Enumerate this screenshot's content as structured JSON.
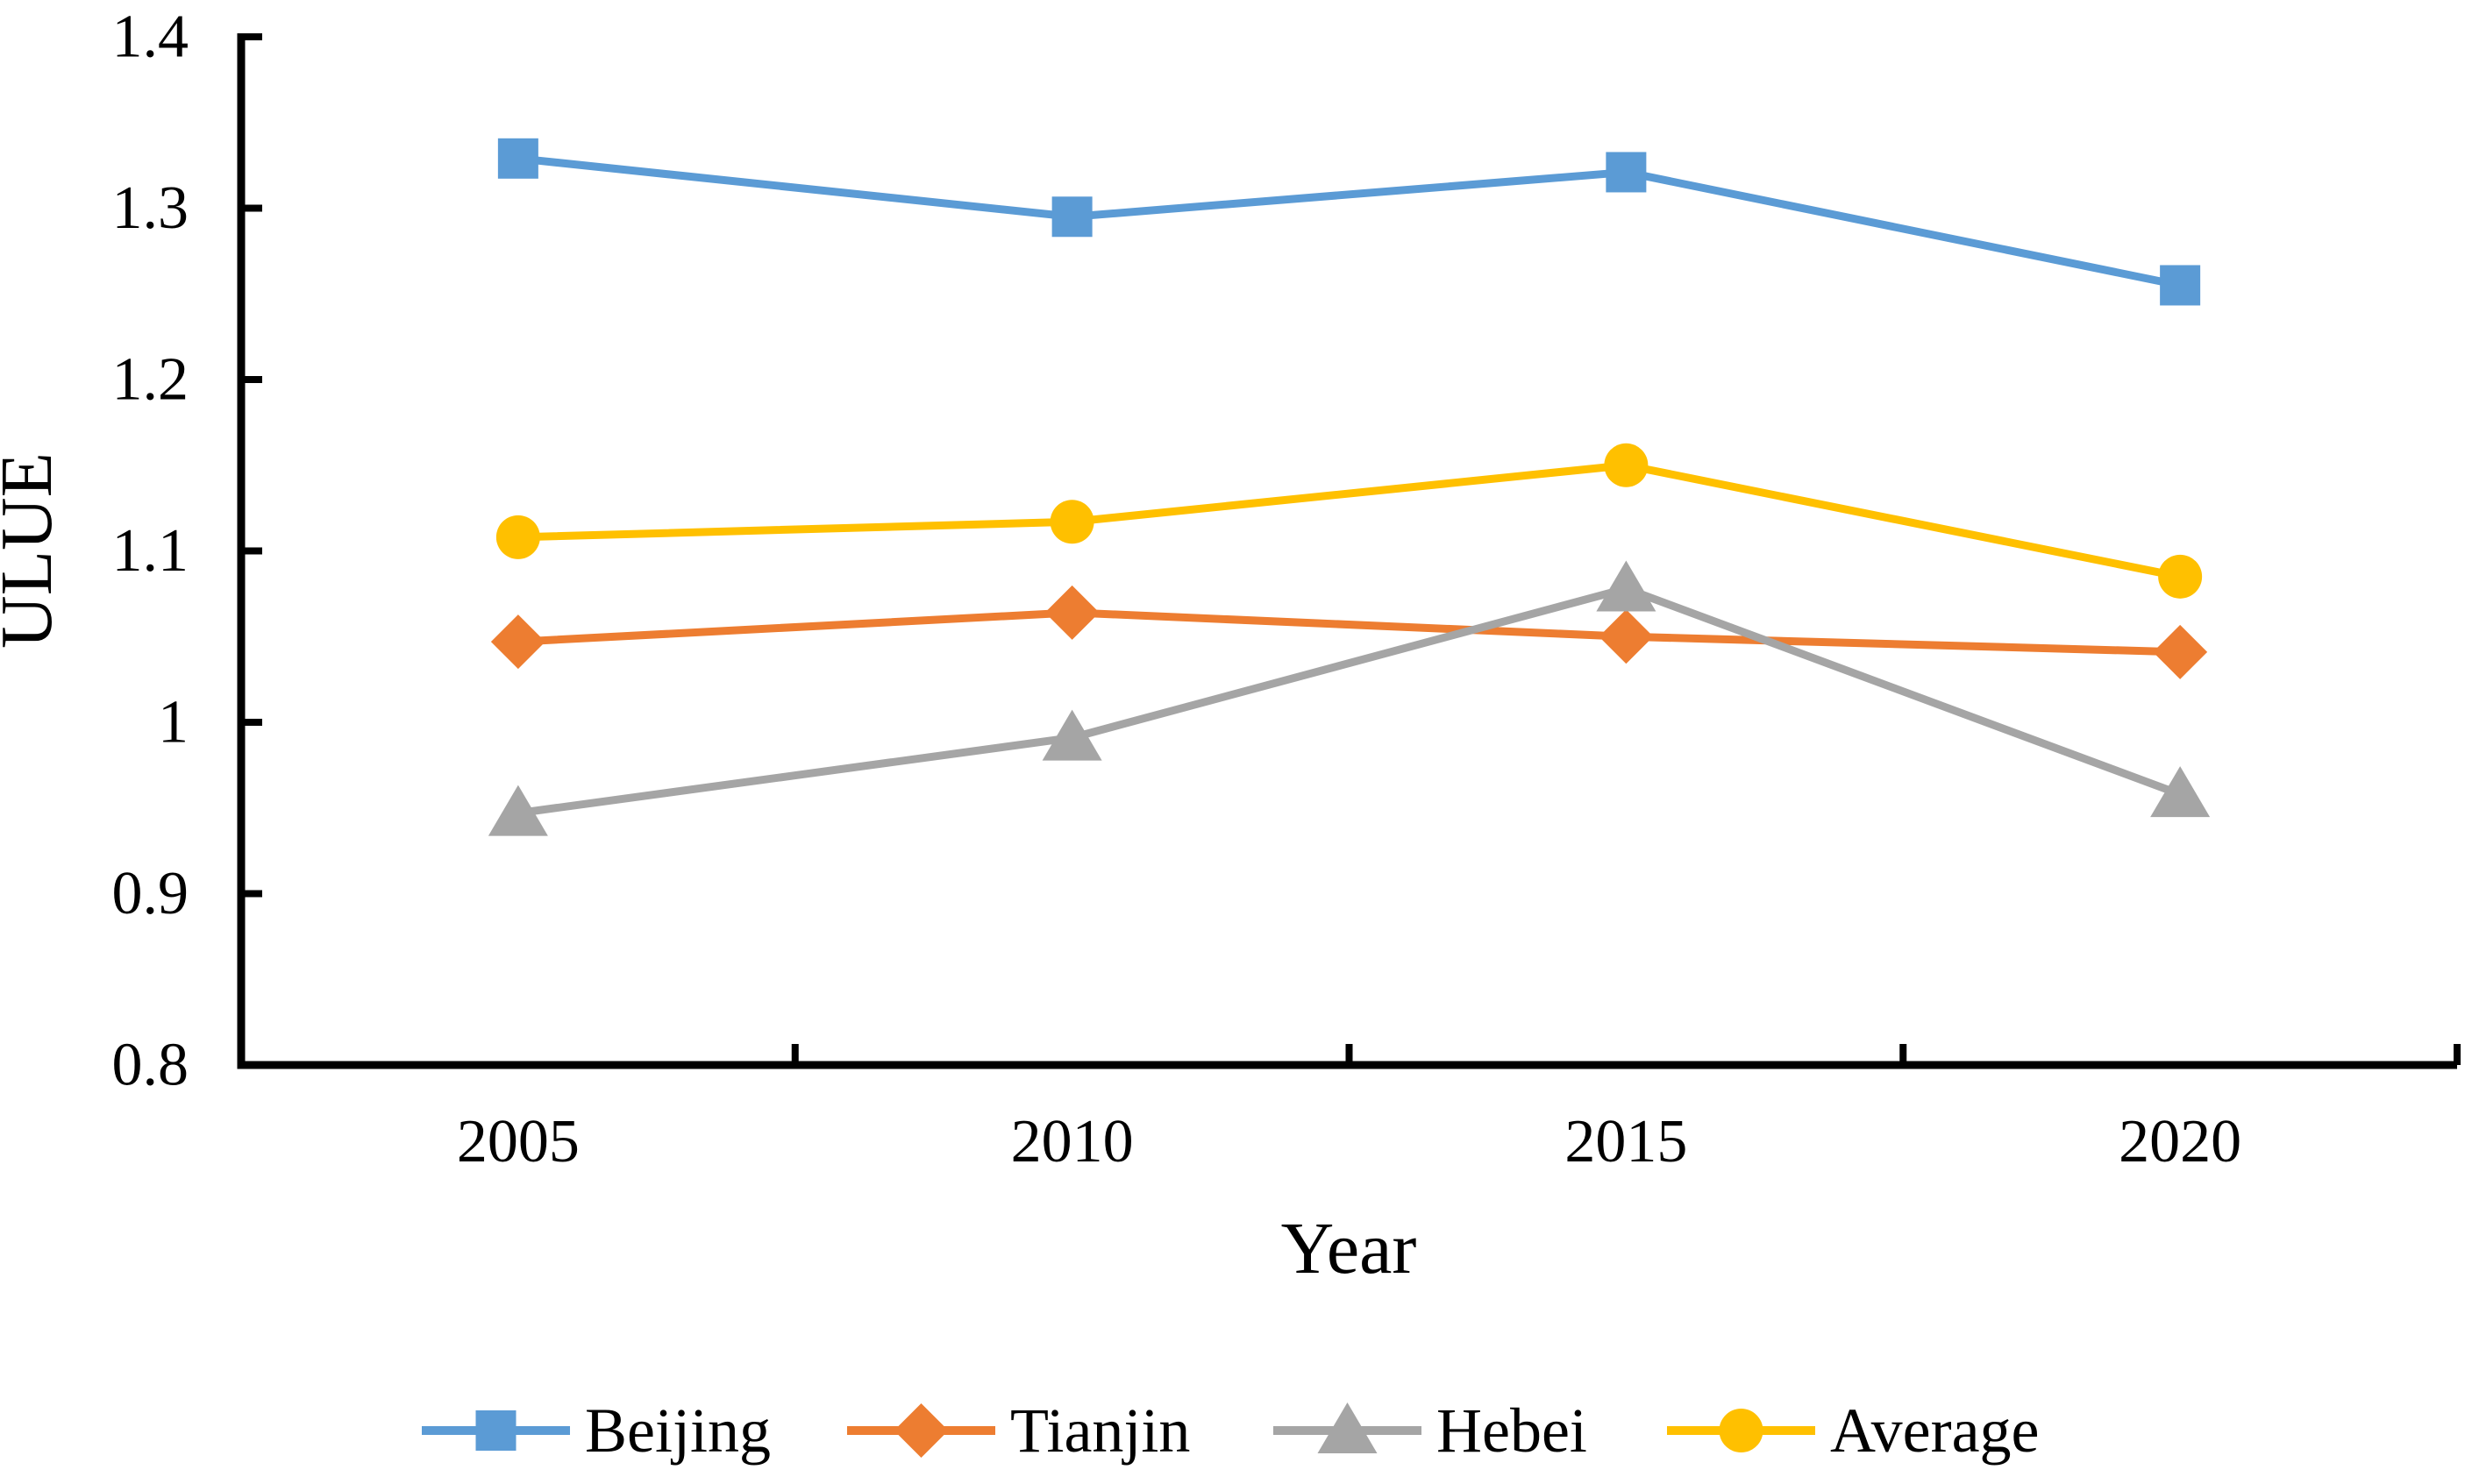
{
  "chart_data": {
    "type": "line",
    "title": "",
    "categories": [
      "2005",
      "2010",
      "2015",
      "2020"
    ],
    "series": [
      {
        "name": "Beijing",
        "color": "#5B9BD5",
        "marker": "square",
        "values": [
          1.329,
          1.295,
          1.321,
          1.255
        ]
      },
      {
        "name": "Tianjin",
        "color": "#ED7D31",
        "marker": "diamond",
        "values": [
          1.047,
          1.064,
          1.05,
          1.041
        ]
      },
      {
        "name": "Hebei",
        "color": "#A5A5A5",
        "marker": "triangle",
        "values": [
          0.947,
          0.991,
          1.078,
          0.958
        ]
      },
      {
        "name": "Average",
        "color": "#FFC000",
        "marker": "circle",
        "values": [
          1.108,
          1.117,
          1.15,
          1.085
        ]
      }
    ],
    "xlabel": "Year",
    "ylabel": "ULUE",
    "ylim": [
      0.8,
      1.4
    ],
    "ytick_labels": [
      "0.8",
      "0.9",
      "1",
      "1.1",
      "1.2",
      "1.3",
      "1.4"
    ],
    "ytick_step": 0.1,
    "grid": false,
    "legend_position": "bottom",
    "axis_color": "#000000",
    "background": "#FFFFFF"
  }
}
